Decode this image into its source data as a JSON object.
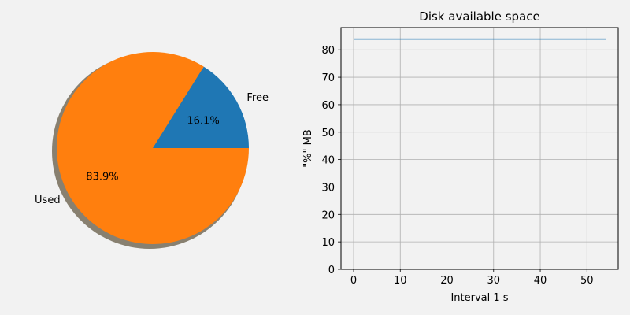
{
  "colors": {
    "background": "#f2f2f2",
    "free": "#1f77b4",
    "used": "#ff7f0e",
    "line": "#1f77b4",
    "grid": "#b0b0b0",
    "shadow": "#888070"
  },
  "chart_data": [
    {
      "type": "pie",
      "slices": [
        {
          "label": "Free",
          "value": 16.1,
          "pct_label": "16.1%",
          "color": "#1f77b4"
        },
        {
          "label": "Used",
          "value": 83.9,
          "pct_label": "83.9%",
          "color": "#ff7f0e"
        }
      ],
      "shadow": true,
      "start_angle_deg": 0
    },
    {
      "type": "line",
      "title": "Disk available space",
      "xlabel": "Interval 1 s",
      "ylabel": "\"%\" MB",
      "xlim": [
        -2.7,
        56.7
      ],
      "ylim": [
        0,
        88.1
      ],
      "xticks": [
        0,
        10,
        20,
        30,
        40,
        50
      ],
      "yticks": [
        0,
        10,
        20,
        30,
        40,
        50,
        60,
        70,
        80
      ],
      "grid": true,
      "series": [
        {
          "x": [
            0,
            54
          ],
          "y": [
            83.9,
            83.9
          ],
          "color": "#1f77b4"
        }
      ]
    }
  ]
}
